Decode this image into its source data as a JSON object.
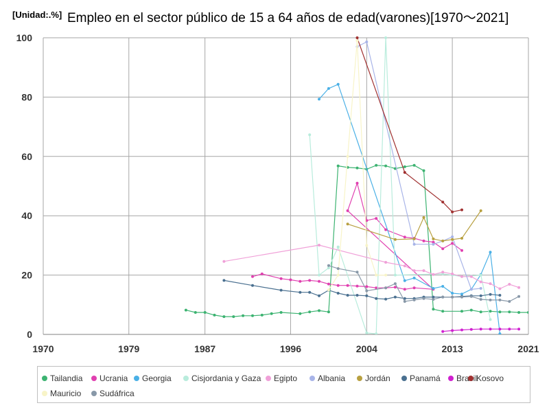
{
  "chart_data": {
    "type": "line",
    "title": "Empleo en el sector público de 15 a 64 años de edad(varones)[1970～2021]",
    "unit_label": "[Unidad:.%]",
    "xlabel": "",
    "ylabel": "",
    "xlim": [
      1970,
      2021
    ],
    "ylim": [
      0,
      100
    ],
    "x_ticks": [
      "1970",
      "1979",
      "1987",
      "1996",
      "2004",
      "2013",
      "2021"
    ],
    "y_ticks": [
      "0",
      "20",
      "40",
      "60",
      "80",
      "100"
    ],
    "grid": true,
    "legend_position": "bottom",
    "series": [
      {
        "name": "Tailandia",
        "color": "#3cb371",
        "points": [
          [
            1985,
            8.2
          ],
          [
            1986,
            7.4
          ],
          [
            1987,
            7.4
          ],
          [
            1988,
            6.5
          ],
          [
            1989,
            6.0
          ],
          [
            1990,
            6.0
          ],
          [
            1991,
            6.3
          ],
          [
            1992,
            6.3
          ],
          [
            1993,
            6.5
          ],
          [
            1994,
            7.0
          ],
          [
            1995,
            7.4
          ],
          [
            1997,
            7.0
          ],
          [
            1998,
            7.6
          ],
          [
            1999,
            8.0
          ],
          [
            2000,
            7.6
          ],
          [
            2001,
            56.8
          ],
          [
            2002,
            56.3
          ],
          [
            2003,
            56.1
          ],
          [
            2004,
            55.7
          ],
          [
            2005,
            57.0
          ],
          [
            2006,
            56.8
          ],
          [
            2007,
            55.9
          ],
          [
            2008,
            56.5
          ],
          [
            2009,
            57.0
          ],
          [
            2010,
            55.2
          ],
          [
            2011,
            8.5
          ],
          [
            2012,
            7.8
          ],
          [
            2014,
            7.8
          ],
          [
            2015,
            8.2
          ],
          [
            2016,
            7.6
          ],
          [
            2017,
            7.8
          ],
          [
            2018,
            7.6
          ],
          [
            2019,
            7.6
          ],
          [
            2020,
            7.4
          ],
          [
            2021,
            7.4
          ]
        ]
      },
      {
        "name": "Ucrania",
        "color": "#e040b0",
        "points": [
          [
            1992,
            19.5
          ],
          [
            1993,
            20.4
          ],
          [
            1995,
            18.8
          ],
          [
            1996,
            18.4
          ],
          [
            1997,
            17.9
          ],
          [
            1998,
            18.2
          ],
          [
            1999,
            17.9
          ],
          [
            2000,
            17.0
          ],
          [
            2001,
            16.5
          ],
          [
            2002,
            16.5
          ],
          [
            2003,
            16.3
          ],
          [
            2004,
            16.1
          ],
          [
            2005,
            15.7
          ],
          [
            2006,
            15.7
          ],
          [
            2007,
            15.9
          ],
          [
            2008,
            15.2
          ],
          [
            2009,
            15.7
          ],
          [
            2011,
            15.2
          ],
          [
            2002,
            41.7
          ],
          [
            2003,
            51.0
          ],
          [
            2004,
            38.4
          ],
          [
            2005,
            39.1
          ],
          [
            2006,
            35.3
          ],
          [
            2008,
            32.8
          ],
          [
            2009,
            32.4
          ],
          [
            2010,
            31.5
          ],
          [
            2011,
            31.1
          ],
          [
            2012,
            28.9
          ],
          [
            2013,
            30.7
          ],
          [
            2014,
            28.3
          ]
        ]
      },
      {
        "name": "Georgia",
        "color": "#4ab0e6",
        "points": [
          [
            1999,
            79.3
          ],
          [
            2000,
            82.9
          ],
          [
            2001,
            84.3
          ],
          [
            2008,
            18.1
          ],
          [
            2009,
            19.0
          ],
          [
            2011,
            15.5
          ],
          [
            2012,
            16.2
          ],
          [
            2013,
            13.9
          ],
          [
            2014,
            13.6
          ],
          [
            2015,
            15.2
          ],
          [
            2016,
            20.2
          ],
          [
            2017,
            27.7
          ],
          [
            2018,
            0.2
          ]
        ]
      },
      {
        "name": "Cisjordania y Gaza",
        "color": "#b8ecdc",
        "points": [
          [
            1998,
            67.3
          ],
          [
            1999,
            20.0
          ],
          [
            2000,
            22.4
          ],
          [
            2001,
            29.5
          ],
          [
            2004,
            0.5
          ],
          [
            2005,
            0.2
          ],
          [
            2006,
            100
          ],
          [
            2007,
            20.0
          ],
          [
            2012,
            20.4
          ],
          [
            2013,
            20.0
          ],
          [
            2014,
            19.5
          ],
          [
            2015,
            19.7
          ],
          [
            2016,
            20.0
          ],
          [
            2017,
            5.0
          ]
        ]
      },
      {
        "name": "Egipto",
        "color": "#f0a0d8",
        "points": [
          [
            1989,
            24.6
          ],
          [
            1999,
            30.1
          ],
          [
            2006,
            24.3
          ],
          [
            2008,
            23.1
          ],
          [
            2009,
            21.5
          ],
          [
            2010,
            21.5
          ],
          [
            2011,
            20.2
          ],
          [
            2012,
            21.0
          ],
          [
            2013,
            20.4
          ],
          [
            2014,
            19.5
          ],
          [
            2015,
            19.5
          ],
          [
            2016,
            17.7
          ],
          [
            2017,
            17.1
          ],
          [
            2018,
            15.4
          ],
          [
            2019,
            16.9
          ],
          [
            2020,
            15.8
          ]
        ]
      },
      {
        "name": "Albania",
        "color": "#a8b4e8",
        "points": [
          [
            2003,
            97.0
          ],
          [
            2004,
            98.6
          ],
          [
            2009,
            30.4
          ],
          [
            2011,
            30.4
          ],
          [
            2012,
            31.5
          ],
          [
            2013,
            32.9
          ],
          [
            2015,
            15.2
          ],
          [
            2016,
            15.5
          ]
        ]
      },
      {
        "name": "Jordán",
        "color": "#b8a040",
        "points": [
          [
            2002,
            37.2
          ],
          [
            2007,
            32.0
          ],
          [
            2009,
            32.2
          ],
          [
            2010,
            39.4
          ],
          [
            2011,
            32.2
          ],
          [
            2012,
            31.5
          ],
          [
            2013,
            32.0
          ],
          [
            2014,
            32.4
          ],
          [
            2016,
            41.7
          ]
        ]
      },
      {
        "name": "Panamá",
        "color": "#4a7090",
        "points": [
          [
            1989,
            18.2
          ],
          [
            1992,
            16.5
          ],
          [
            1995,
            14.9
          ],
          [
            1997,
            14.2
          ],
          [
            1998,
            14.2
          ],
          [
            1999,
            13.0
          ],
          [
            2000,
            14.9
          ],
          [
            2001,
            13.9
          ],
          [
            2002,
            13.2
          ],
          [
            2003,
            13.2
          ],
          [
            2004,
            13.0
          ],
          [
            2005,
            12.1
          ],
          [
            2006,
            11.9
          ],
          [
            2007,
            12.6
          ],
          [
            2008,
            12.1
          ],
          [
            2009,
            12.1
          ],
          [
            2010,
            12.6
          ],
          [
            2011,
            12.6
          ],
          [
            2012,
            12.6
          ],
          [
            2013,
            12.6
          ],
          [
            2014,
            12.8
          ],
          [
            2015,
            13.0
          ],
          [
            2016,
            13.0
          ],
          [
            2017,
            13.5
          ],
          [
            2018,
            13.2
          ]
        ]
      },
      {
        "name": "Brasil",
        "color": "#d020d0",
        "points": [
          [
            2012,
            1.0
          ],
          [
            2013,
            1.3
          ],
          [
            2014,
            1.5
          ],
          [
            2015,
            1.7
          ],
          [
            2016,
            1.8
          ],
          [
            2017,
            1.8
          ],
          [
            2018,
            1.8
          ],
          [
            2019,
            1.8
          ],
          [
            2020,
            1.8
          ]
        ]
      },
      {
        "name": "Kosovo",
        "color": "#a03030",
        "points": [
          [
            2003,
            100
          ],
          [
            2008,
            54.6
          ],
          [
            2012,
            44.6
          ],
          [
            2013,
            41.3
          ],
          [
            2014,
            42.0
          ]
        ]
      },
      {
        "name": "Mauricio",
        "color": "#f8f4c8",
        "points": [
          [
            2000,
            15.0
          ],
          [
            2001,
            20.0
          ],
          [
            2002,
            60.0
          ],
          [
            2003,
            99.0
          ],
          [
            2004,
            30.0
          ],
          [
            2005,
            20.0
          ],
          [
            2006,
            20.0
          ]
        ]
      },
      {
        "name": "Sudáfrica",
        "color": "#8898a8",
        "points": [
          [
            2000,
            23.2
          ],
          [
            2001,
            22.2
          ],
          [
            2003,
            21.0
          ],
          [
            2004,
            14.7
          ],
          [
            2006,
            15.7
          ],
          [
            2007,
            17.1
          ],
          [
            2008,
            11.1
          ],
          [
            2009,
            11.6
          ],
          [
            2010,
            12.1
          ],
          [
            2011,
            11.8
          ],
          [
            2012,
            12.6
          ],
          [
            2013,
            12.6
          ],
          [
            2014,
            12.6
          ],
          [
            2015,
            12.8
          ],
          [
            2016,
            11.8
          ],
          [
            2017,
            11.6
          ],
          [
            2018,
            11.6
          ],
          [
            2019,
            11.1
          ],
          [
            2020,
            12.8
          ]
        ]
      }
    ]
  }
}
